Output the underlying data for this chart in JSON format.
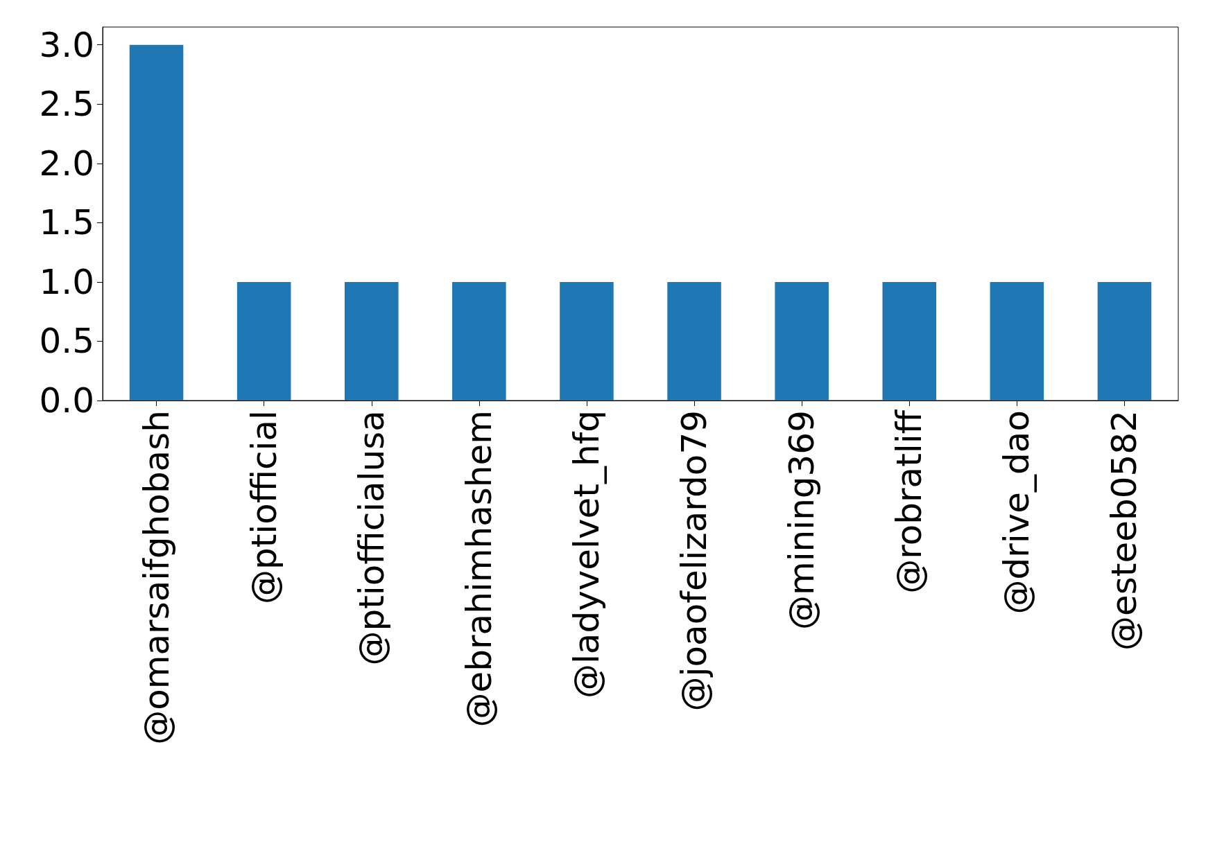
{
  "chart_data": {
    "type": "bar",
    "categories": [
      "@omarsaifghobash",
      "@ptiofficial",
      "@ptiofficialusa",
      "@ebrahimhashem",
      "@ladyvelvet_hfq",
      "@joaofelizardo79",
      "@mining369",
      "@robratliff",
      "@drive_dao",
      "@esteeb0582"
    ],
    "values": [
      3,
      1,
      1,
      1,
      1,
      1,
      1,
      1,
      1,
      1
    ],
    "color": "#1f77b4",
    "ylim": [
      0,
      3.15
    ],
    "yticks": [
      {
        "value": 0,
        "label": "0.0"
      },
      {
        "value": 0.5,
        "label": "0.5"
      },
      {
        "value": 1,
        "label": "1.0"
      },
      {
        "value": 1.5,
        "label": "1.5"
      },
      {
        "value": 2,
        "label": "2.0"
      },
      {
        "value": 2.5,
        "label": "2.5"
      },
      {
        "value": 3,
        "label": "3.0"
      }
    ],
    "grid": false
  }
}
